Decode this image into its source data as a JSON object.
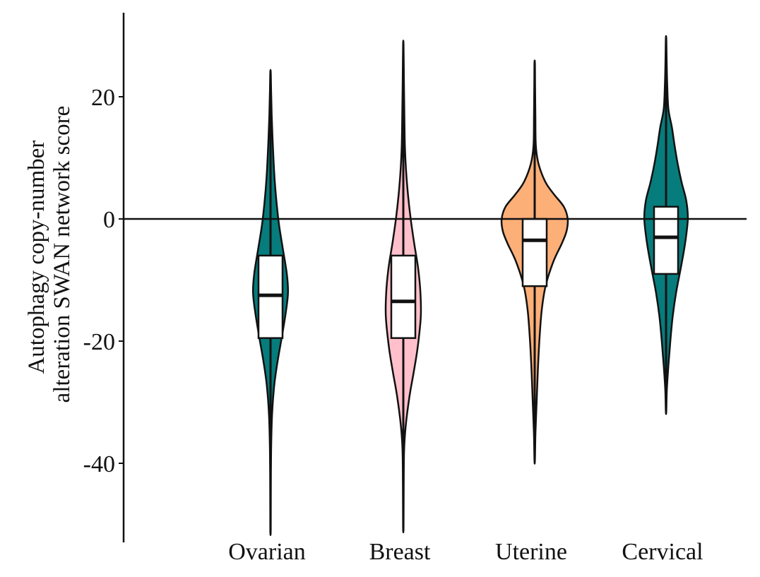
{
  "chart_data": {
    "type": "violin",
    "title": "",
    "xlabel": "",
    "ylabel_lines": [
      "Autophagy copy-number",
      "alteration SWAN network score"
    ],
    "ylim": [
      -53,
      34
    ],
    "yticks": [
      20,
      0,
      -20,
      -40
    ],
    "ytick_labels": [
      "20",
      "0",
      "-20",
      "-40"
    ],
    "reference_line_y": 0,
    "grid": false,
    "legend": "none",
    "categories": [
      "Ovarian",
      "Breast",
      "Uterine",
      "Cervical"
    ],
    "series": [
      {
        "category": "Ovarian",
        "color": "#067C7C",
        "whisker_min": -51,
        "whisker_max": 24,
        "box": {
          "q1": -19.5,
          "median": -12.5,
          "q3": -6
        },
        "density": [
          [
            -51,
            0.6
          ],
          [
            -45,
            0.8
          ],
          [
            -38,
            1.5
          ],
          [
            -32,
            4
          ],
          [
            -27,
            10
          ],
          [
            -23,
            19
          ],
          [
            -19,
            30
          ],
          [
            -15,
            40
          ],
          [
            -12,
            45
          ],
          [
            -9,
            42
          ],
          [
            -5,
            32
          ],
          [
            -1,
            22
          ],
          [
            3,
            15
          ],
          [
            7,
            10
          ],
          [
            12,
            6
          ],
          [
            17,
            3
          ],
          [
            21,
            1.5
          ],
          [
            24,
            0.6
          ]
        ]
      },
      {
        "category": "Breast",
        "color": "#FFC0CB",
        "whisker_min": -50.5,
        "whisker_max": 28.5,
        "box": {
          "q1": -19.5,
          "median": -13.5,
          "q3": -6
        },
        "density": [
          [
            -50.5,
            0.6
          ],
          [
            -44,
            1
          ],
          [
            -38,
            2
          ],
          [
            -34,
            6
          ],
          [
            -29,
            16
          ],
          [
            -25,
            27
          ],
          [
            -21,
            37
          ],
          [
            -16,
            45
          ],
          [
            -12,
            44
          ],
          [
            -8,
            38
          ],
          [
            -4,
            28
          ],
          [
            0,
            19
          ],
          [
            4,
            12
          ],
          [
            8,
            7
          ],
          [
            12,
            4
          ],
          [
            18,
            2.5
          ],
          [
            23,
            1.5
          ],
          [
            28.5,
            0.6
          ]
        ]
      },
      {
        "category": "Uterine",
        "color": "#FDAF78",
        "whisker_min": -39.5,
        "whisker_max": 25.5,
        "box": {
          "q1": -11,
          "median": -3.5,
          "q3": 0
        },
        "density": [
          [
            -39.5,
            0.6
          ],
          [
            -35,
            2
          ],
          [
            -30,
            5
          ],
          [
            -25,
            8
          ],
          [
            -20,
            12
          ],
          [
            -15,
            18
          ],
          [
            -11,
            28
          ],
          [
            -7,
            48
          ],
          [
            -4,
            70
          ],
          [
            -2,
            82
          ],
          [
            0,
            85
          ],
          [
            2,
            75
          ],
          [
            4,
            50
          ],
          [
            6,
            28
          ],
          [
            9,
            10
          ],
          [
            12,
            3
          ],
          [
            17,
            1.8
          ],
          [
            22,
            1
          ],
          [
            25.5,
            0.6
          ]
        ]
      },
      {
        "category": "Cervical",
        "color": "#067C7C",
        "whisker_min": -31.5,
        "whisker_max": 29.5,
        "box": {
          "q1": -9,
          "median": -3,
          "q3": 2
        },
        "density": [
          [
            -31.5,
            0.6
          ],
          [
            -28,
            2
          ],
          [
            -24,
            6
          ],
          [
            -20,
            11
          ],
          [
            -16,
            17
          ],
          [
            -12,
            26
          ],
          [
            -8,
            38
          ],
          [
            -4,
            49
          ],
          [
            0,
            56
          ],
          [
            3,
            52
          ],
          [
            6,
            40
          ],
          [
            9,
            30
          ],
          [
            12,
            22
          ],
          [
            15,
            15
          ],
          [
            18,
            6
          ],
          [
            22,
            3
          ],
          [
            26,
            1.5
          ],
          [
            29.5,
            0.6
          ]
        ]
      }
    ]
  }
}
